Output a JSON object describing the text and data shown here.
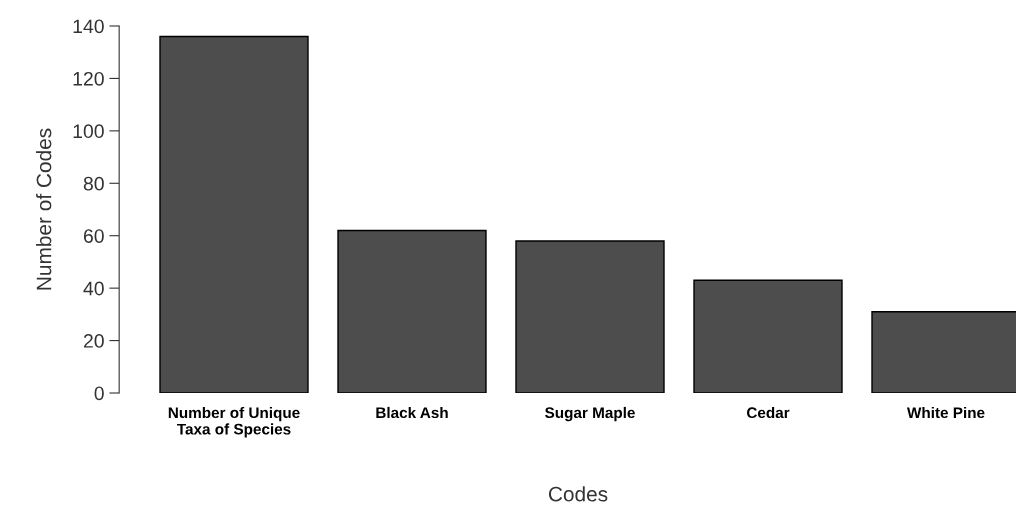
{
  "chart_data": {
    "type": "bar",
    "xlabel": "Codes",
    "ylabel": "Number of Codes",
    "categories": [
      "Number of Unique\nTaxa of Species",
      "Black Ash",
      "Sugar Maple",
      "Cedar",
      "White Pine"
    ],
    "values": [
      136,
      62,
      58,
      43,
      31
    ],
    "color": "#4d4d4d",
    "ylim": [
      0,
      140
    ],
    "yticks": [
      0,
      20,
      40,
      60,
      80,
      100,
      120,
      140
    ],
    "grid": false
  }
}
